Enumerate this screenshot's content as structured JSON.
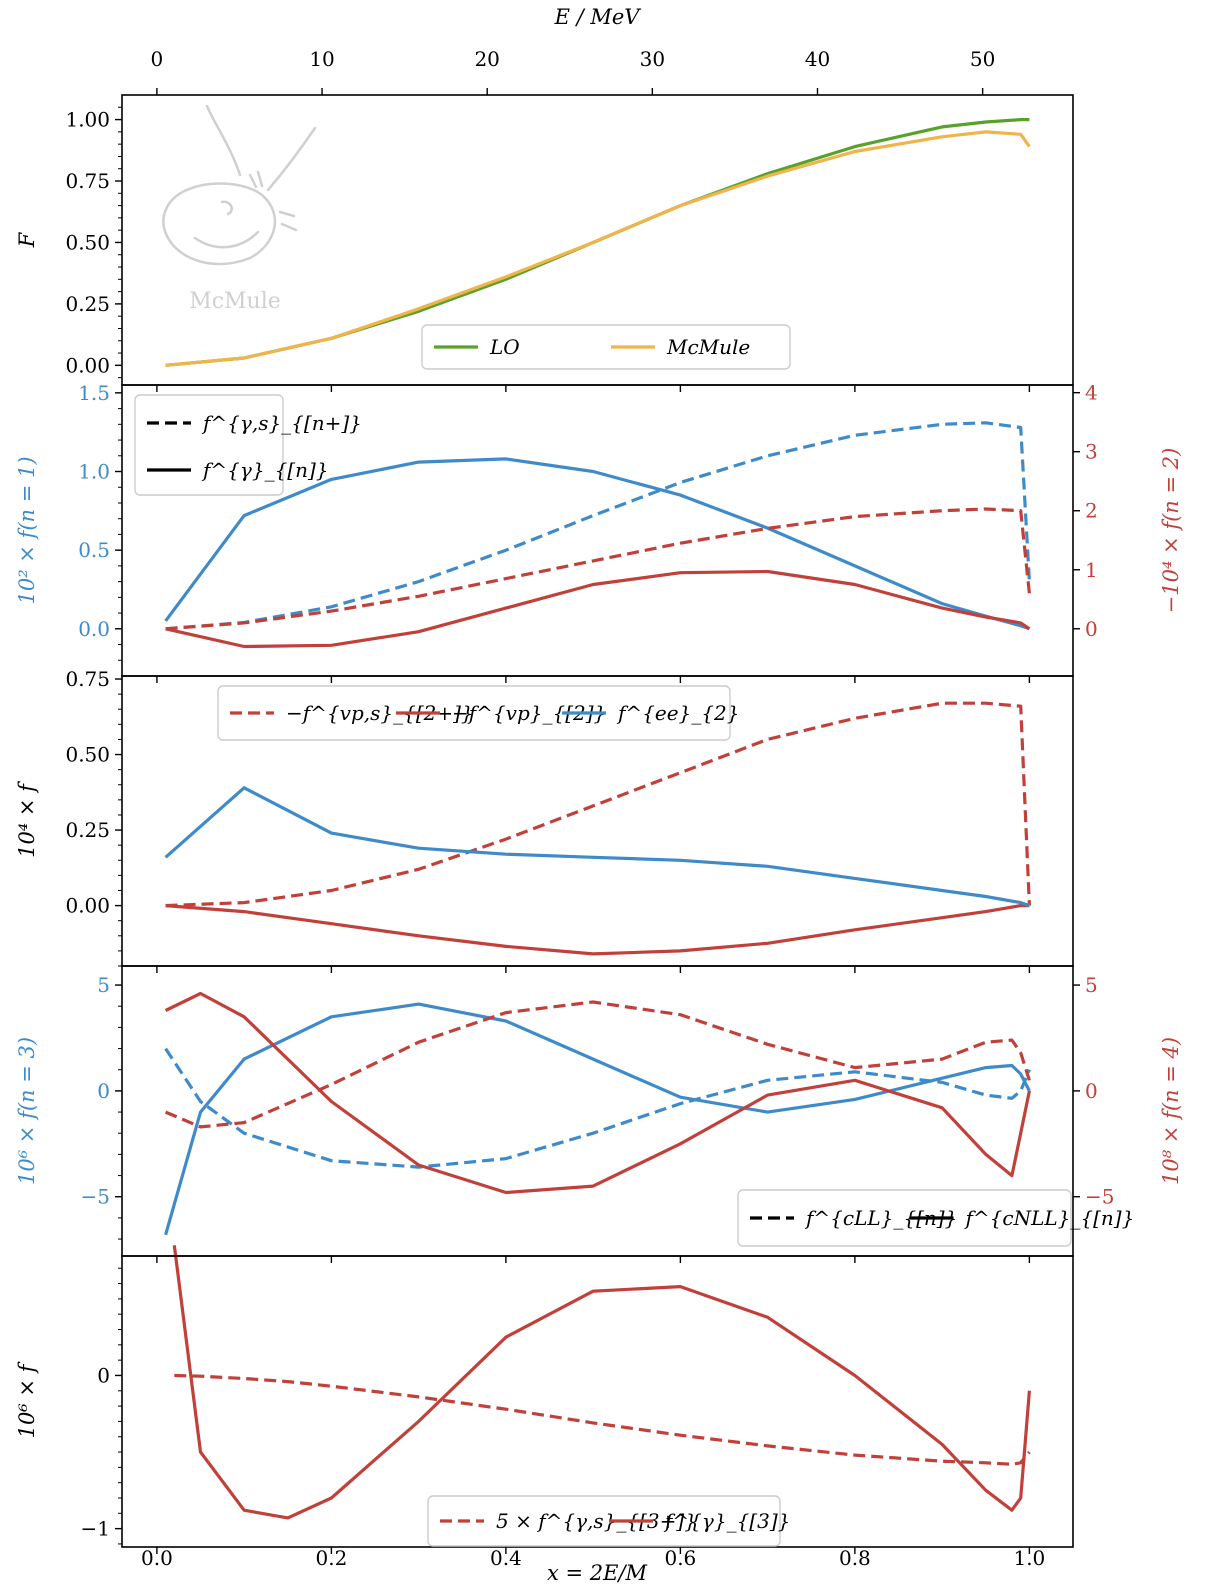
{
  "figure": {
    "top_axis_label": "E / MeV",
    "bottom_axis_label": "x = 2E/M",
    "top_ticks": [
      "0",
      "10",
      "20",
      "30",
      "40",
      "50"
    ],
    "bottom_ticks": [
      "0.0",
      "0.2",
      "0.4",
      "0.6",
      "0.8",
      "1.0"
    ],
    "watermark": "McMule",
    "colors": {
      "green": "#5aa02c",
      "orange": "#f0b44b",
      "blue": "#3f8bc9",
      "red": "#c1403a",
      "black": "#000000"
    }
  },
  "chart_data": [
    {
      "type": "line",
      "panel": "1",
      "ylabel": "F",
      "ylim": [
        -0.08,
        1.1
      ],
      "yticks": [
        "0.00",
        "0.25",
        "0.50",
        "0.75",
        "1.00"
      ],
      "x": [
        0.01,
        0.1,
        0.2,
        0.3,
        0.4,
        0.5,
        0.6,
        0.7,
        0.8,
        0.9,
        0.95,
        0.99,
        1.0
      ],
      "series": [
        {
          "name": "LO",
          "color": "green",
          "style": "solid",
          "values": [
            0.0,
            0.03,
            0.11,
            0.22,
            0.35,
            0.5,
            0.65,
            0.78,
            0.89,
            0.97,
            0.99,
            1.0,
            1.0
          ]
        },
        {
          "name": "McMule",
          "color": "orange",
          "style": "solid",
          "values": [
            0.0,
            0.03,
            0.11,
            0.23,
            0.36,
            0.5,
            0.65,
            0.77,
            0.87,
            0.93,
            0.95,
            0.94,
            0.89
          ]
        }
      ],
      "legend": [
        "LO",
        "McMule"
      ]
    },
    {
      "type": "line",
      "panel": "2",
      "ylabel_left": "10² × f(n = 1)",
      "ylabel_right": "−10⁴ × f(n = 2)",
      "ylim_left": [
        -0.3,
        1.55
      ],
      "ylim_right": [
        -0.8,
        4.13
      ],
      "yticks_left": [
        "0.0",
        "0.5",
        "1.0",
        "1.5"
      ],
      "yticks_right": [
        "0",
        "1",
        "2",
        "3",
        "4"
      ],
      "x": [
        0.01,
        0.1,
        0.2,
        0.3,
        0.4,
        0.5,
        0.6,
        0.7,
        0.8,
        0.9,
        0.95,
        0.99,
        1.0
      ],
      "series": [
        {
          "name": "n=1 soft",
          "color": "blue",
          "style": "dashed",
          "axis": "left",
          "values": [
            0.0,
            0.04,
            0.14,
            0.3,
            0.5,
            0.72,
            0.93,
            1.1,
            1.23,
            1.3,
            1.31,
            1.28,
            0.3
          ]
        },
        {
          "name": "n=1 full",
          "color": "blue",
          "style": "solid",
          "axis": "left",
          "values": [
            0.05,
            0.72,
            0.95,
            1.06,
            1.08,
            1.0,
            0.85,
            0.64,
            0.4,
            0.16,
            0.08,
            0.02,
            0.0
          ]
        },
        {
          "name": "n=2 soft",
          "color": "red",
          "style": "dashed",
          "axis": "right",
          "values": [
            0.0,
            0.1,
            0.3,
            0.55,
            0.85,
            1.15,
            1.45,
            1.7,
            1.9,
            2.0,
            2.03,
            2.0,
            0.6
          ]
        },
        {
          "name": "n=2 full",
          "color": "red",
          "style": "solid",
          "axis": "right",
          "values": [
            0.0,
            -0.3,
            -0.28,
            -0.05,
            0.35,
            0.75,
            0.95,
            0.97,
            0.75,
            0.35,
            0.2,
            0.1,
            0.0
          ]
        }
      ],
      "legend": [
        "f^{γ,s}_{[n+]}",
        "f^{γ}_{[n]}"
      ]
    },
    {
      "type": "line",
      "panel": "3",
      "ylabel": "10⁴ × f",
      "ylim": [
        -0.2,
        0.76
      ],
      "yticks": [
        "0.00",
        "0.25",
        "0.50",
        "0.75"
      ],
      "x": [
        0.01,
        0.1,
        0.2,
        0.3,
        0.4,
        0.5,
        0.6,
        0.7,
        0.8,
        0.9,
        0.95,
        0.99,
        1.0
      ],
      "series": [
        {
          "name": "vp soft",
          "color": "red",
          "style": "dashed",
          "values": [
            0.0,
            0.01,
            0.05,
            0.12,
            0.22,
            0.33,
            0.44,
            0.55,
            0.62,
            0.67,
            0.67,
            0.66,
            0.0
          ]
        },
        {
          "name": "vp",
          "color": "red",
          "style": "solid",
          "values": [
            0.0,
            -0.02,
            -0.06,
            -0.1,
            -0.135,
            -0.16,
            -0.15,
            -0.125,
            -0.08,
            -0.04,
            -0.02,
            0.0,
            0.0
          ]
        },
        {
          "name": "ee",
          "color": "blue",
          "style": "solid",
          "values": [
            0.16,
            0.39,
            0.24,
            0.19,
            0.17,
            0.16,
            0.15,
            0.13,
            0.09,
            0.05,
            0.03,
            0.01,
            0.0
          ]
        }
      ],
      "legend": [
        "−f^{vp,s}_{[2+]}",
        "−f^{vp}_{[2]}",
        "f^{ee}_{2}"
      ]
    },
    {
      "type": "line",
      "panel": "4",
      "ylabel_left": "10⁶ × f(n = 3)",
      "ylabel_right": "10⁸ × f(n = 4)",
      "ylim_left": [
        -7.8,
        5.9
      ],
      "ylim_right": [
        -7.8,
        5.9
      ],
      "yticks_left": [
        "−5",
        "0",
        "5"
      ],
      "yticks_right": [
        "−5",
        "0",
        "5"
      ],
      "x": [
        0.01,
        0.05,
        0.1,
        0.2,
        0.3,
        0.4,
        0.5,
        0.6,
        0.7,
        0.8,
        0.9,
        0.95,
        0.98,
        0.99,
        1.0
      ],
      "series": [
        {
          "name": "n=3 LL",
          "color": "blue",
          "style": "dashed",
          "axis": "left",
          "values": [
            2.0,
            -0.5,
            -2.0,
            -3.3,
            -3.6,
            -3.2,
            -2.0,
            -0.6,
            0.5,
            0.9,
            0.4,
            -0.2,
            -0.35,
            0.0,
            1.0
          ]
        },
        {
          "name": "n=3 NLL",
          "color": "blue",
          "style": "solid",
          "axis": "left",
          "values": [
            -6.8,
            -1.0,
            1.5,
            3.5,
            4.1,
            3.3,
            1.5,
            -0.3,
            -1.0,
            -0.4,
            0.6,
            1.1,
            1.2,
            0.8,
            0.0
          ]
        },
        {
          "name": "n=4 LL",
          "color": "red",
          "style": "dashed",
          "axis": "right",
          "values": [
            -1.0,
            -1.7,
            -1.5,
            0.3,
            2.3,
            3.7,
            4.2,
            3.6,
            2.2,
            1.1,
            1.5,
            2.3,
            2.4,
            1.8,
            0.5
          ]
        },
        {
          "name": "n=4 NLL",
          "color": "red",
          "style": "solid",
          "axis": "right",
          "values": [
            3.8,
            4.6,
            3.5,
            -0.5,
            -3.5,
            -4.8,
            -4.5,
            -2.5,
            -0.2,
            0.5,
            -0.8,
            -3.0,
            -4.0,
            -2.0,
            0.0
          ]
        }
      ],
      "legend": [
        "f^{cLL}_{[n]}",
        "f^{cNLL}_{[n]}"
      ]
    },
    {
      "type": "line",
      "panel": "5",
      "ylabel": "10⁶ × f",
      "ylim": [
        -1.12,
        0.78
      ],
      "yticks": [
        "−1",
        "0"
      ],
      "x": [
        0.02,
        0.05,
        0.1,
        0.15,
        0.2,
        0.3,
        0.4,
        0.5,
        0.6,
        0.7,
        0.8,
        0.9,
        0.95,
        0.98,
        0.99,
        1.0
      ],
      "series": [
        {
          "name": "5 × soft",
          "color": "red",
          "style": "dashed",
          "values": [
            0.0,
            -0.005,
            -0.02,
            -0.04,
            -0.07,
            -0.14,
            -0.22,
            -0.31,
            -0.39,
            -0.46,
            -0.52,
            -0.56,
            -0.57,
            -0.58,
            -0.57,
            -0.5
          ]
        },
        {
          "name": "full",
          "color": "red",
          "style": "solid",
          "values": [
            0.85,
            -0.5,
            -0.88,
            -0.93,
            -0.8,
            -0.3,
            0.25,
            0.55,
            0.58,
            0.38,
            0.0,
            -0.45,
            -0.75,
            -0.88,
            -0.8,
            -0.1
          ]
        }
      ],
      "legend": [
        "5 × f^{γ,s}_{[3+]}",
        "f^{γ}_{[3]}"
      ]
    }
  ]
}
